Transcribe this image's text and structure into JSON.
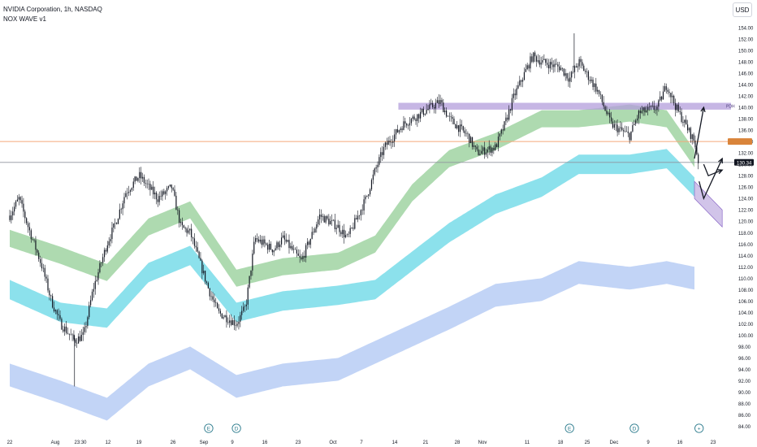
{
  "header": {
    "symbol_line": "NVIDIA Corporation, 1h, NASDAQ",
    "indicator": "NOX WAVE v1",
    "currency": "USD"
  },
  "price_labels": {
    "current": "130.34",
    "pdh": "PDH"
  },
  "event_markers": [
    {
      "x": "Sep 3",
      "label": "E"
    },
    {
      "x": "Sep 9",
      "label": "D"
    },
    {
      "x": "Nov 20",
      "label": "E"
    },
    {
      "x": "Dec 4",
      "label": "D"
    },
    {
      "x": "Dec 18",
      "label": "+"
    }
  ],
  "colors": {
    "candle": "#131722",
    "band_fast": "#a5d6a7",
    "band_mid": "#80deea",
    "band_slow": "#bbcff5",
    "zone": "#b39ddb",
    "orange_line": "#f5a97a",
    "current_price_line": "#90949e"
  },
  "chart_data": {
    "type": "line",
    "x_axis_labels": [
      "22",
      "Aug",
      "23:30",
      "12",
      "19",
      "26",
      "Sep",
      "9",
      "16",
      "23",
      "Oct",
      "7",
      "14",
      "21",
      "28",
      "Nov",
      "11",
      "18",
      "25",
      "Dec",
      "9",
      "16",
      "23"
    ],
    "y_axis_labels": [
      "84.00",
      "86.00",
      "88.00",
      "90.00",
      "92.00",
      "94.00",
      "96.00",
      "98.00",
      "100.00",
      "102.00",
      "104.00",
      "106.00",
      "108.00",
      "110.00",
      "112.00",
      "114.00",
      "116.00",
      "118.00",
      "120.00",
      "122.00",
      "124.00",
      "126.00",
      "128.00",
      "130.00",
      "132.00",
      "134.00",
      "136.00",
      "138.00",
      "140.00",
      "142.00",
      "144.00",
      "146.00",
      "148.00",
      "150.00",
      "152.00",
      "154.00"
    ],
    "ylim": [
      83,
      155
    ],
    "price_path": {
      "x": [
        "Jul 22",
        "Jul 24",
        "Jul 26",
        "Jul 29",
        "Jul 31",
        "Aug 2",
        "Aug 5",
        "Aug 7",
        "Aug 9",
        "Aug 12",
        "Aug 14",
        "Aug 16",
        "Aug 19",
        "Aug 21",
        "Aug 23",
        "Aug 26",
        "Aug 28",
        "Aug 30",
        "Sep 3",
        "Sep 5",
        "Sep 9",
        "Sep 11",
        "Sep 13",
        "Sep 17",
        "Sep 19",
        "Sep 23",
        "Sep 25",
        "Sep 27",
        "Oct 1",
        "Oct 3",
        "Oct 7",
        "Oct 9",
        "Oct 11",
        "Oct 15",
        "Oct 17",
        "Oct 21",
        "Oct 23",
        "Oct 25",
        "Oct 29",
        "Oct 31",
        "Nov 4",
        "Nov 6",
        "Nov 8",
        "Nov 12",
        "Nov 14",
        "Nov 18",
        "Nov 20",
        "Nov 22",
        "Nov 26",
        "Nov 29",
        "Dec 3",
        "Dec 5",
        "Dec 9",
        "Dec 11",
        "Dec 13",
        "Dec 17",
        "Dec 18"
      ],
      "y": [
        121,
        124,
        119,
        112,
        106,
        102,
        99,
        100,
        108,
        116,
        120,
        125,
        128,
        126,
        124,
        126,
        119,
        118,
        108,
        104,
        102,
        105,
        117,
        115,
        117,
        113,
        117,
        121,
        119,
        117,
        124,
        129,
        133,
        137,
        138,
        140,
        141,
        138,
        135,
        132,
        133,
        137,
        142,
        149,
        148,
        147,
        145,
        148,
        143,
        137,
        135,
        139,
        140,
        144,
        140,
        134,
        130
      ]
    },
    "series": [
      {
        "x": [
          "Jul 22",
          "Aug 2",
          "Aug 12",
          "Aug 21",
          "Aug 30",
          "Sep 9",
          "Sep 19",
          "Oct 1",
          "Oct 9",
          "Oct 17",
          "Oct 25",
          "Nov 4",
          "Nov 14",
          "Nov 22",
          "Dec 3",
          "Dec 11",
          "Dec 17"
        ],
        "values": [
          117,
          114,
          111,
          119,
          122,
          110,
          112,
          113,
          116,
          125,
          131,
          134,
          138,
          138,
          139,
          138,
          131
        ]
      },
      {
        "x": [
          "Jul 22",
          "Aug 2",
          "Aug 12",
          "Aug 21",
          "Aug 30",
          "Sep 9",
          "Sep 19",
          "Oct 1",
          "Oct 9",
          "Oct 17",
          "Oct 25",
          "Nov 4",
          "Nov 14",
          "Nov 22",
          "Dec 3",
          "Dec 11",
          "Dec 17"
        ],
        "values": [
          108,
          104,
          103,
          111,
          114,
          104,
          106,
          107,
          108,
          113,
          118,
          123,
          126,
          130,
          130,
          131,
          126
        ]
      },
      {
        "x": [
          "Jul 22",
          "Aug 2",
          "Aug 12",
          "Aug 21",
          "Aug 30",
          "Sep 9",
          "Sep 19",
          "Oct 1",
          "Oct 9",
          "Oct 17",
          "Oct 25",
          "Nov 4",
          "Nov 14",
          "Nov 22",
          "Dec 3",
          "Dec 11",
          "Dec 17"
        ],
        "values": [
          93,
          90,
          87,
          93,
          96,
          91,
          93,
          94,
          97,
          100,
          103,
          107,
          108,
          111,
          110,
          111,
          110
        ]
      }
    ],
    "zones": [
      {
        "type": "horizontal",
        "x": [
          "Oct 14",
          "Dec 23"
        ],
        "y": [
          139.6,
          140.8
        ],
        "label": "PDH"
      },
      {
        "type": "channel",
        "x": [
          "Dec 17",
          "Dec 23"
        ],
        "y_top": [
          127,
          122
        ],
        "y_bottom": [
          124,
          119
        ]
      }
    ],
    "horizontal_lines": [
      {
        "name": "orange",
        "y": 134.0
      },
      {
        "name": "current",
        "y": 130.34
      }
    ],
    "projection_arrows": [
      {
        "x": [
          "Dec 17",
          "Dec 19"
        ],
        "y": [
          131,
          140
        ]
      },
      {
        "x": [
          "Dec 19",
          "Dec 20",
          "Dec 23"
        ],
        "y": [
          130,
          128,
          129
        ]
      },
      {
        "x": [
          "Dec 18",
          "Dec 19",
          "Dec 23"
        ],
        "y": [
          127,
          124,
          131
        ]
      }
    ],
    "grid": false,
    "log_scale": false
  }
}
